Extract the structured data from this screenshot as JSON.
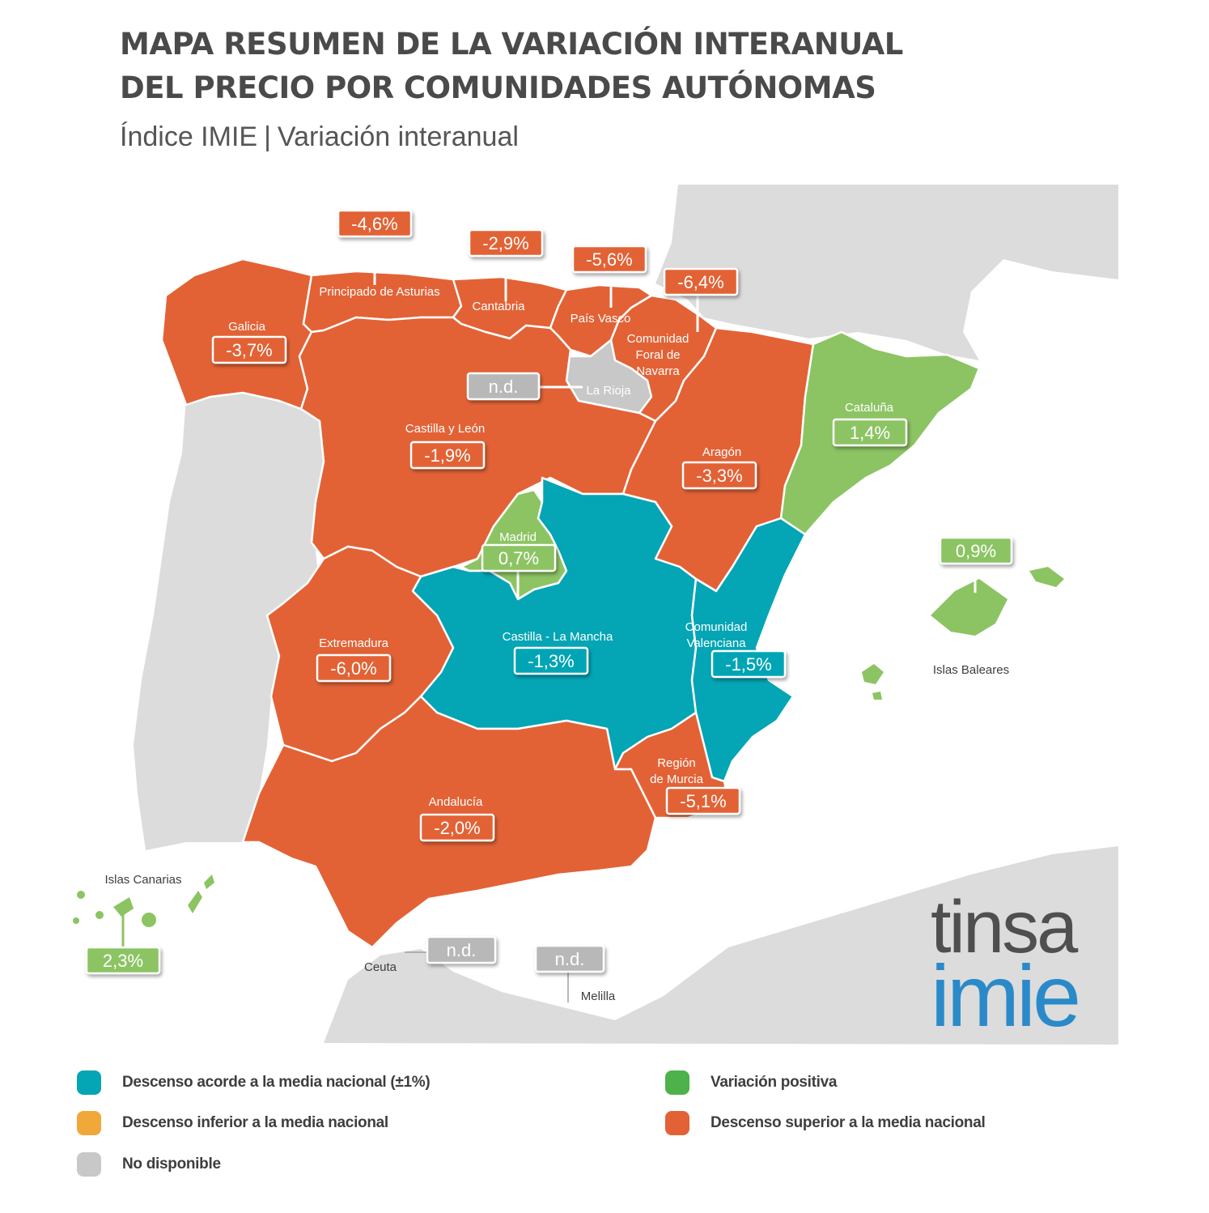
{
  "title_line1": "MAPA RESUMEN DE LA VARIACIÓN INTERANUAL",
  "title_line2": "DEL PRECIO POR COMUNIDADES AUTÓNOMAS",
  "subtitle_left": "Índice IMIE",
  "subtitle_sep": "|",
  "subtitle_right": "Variación interanual",
  "colors": {
    "orange": "#e26236",
    "teal": "#04a5b5",
    "green": "#8cc463",
    "grey": "#c8c8c8",
    "land_grey": "#dcdcdc",
    "legend_green": "#4db24b",
    "legend_yellow": "#f0a83a"
  },
  "regions": [
    {
      "id": "galicia",
      "name": "Galicia",
      "value": "-3,7%",
      "category": "descenso_superior"
    },
    {
      "id": "asturias",
      "name": "Principado de Asturias",
      "value": "-4,6%",
      "category": "descenso_superior"
    },
    {
      "id": "cantabria",
      "name": "Cantabria",
      "value": "-2,9%",
      "category": "descenso_superior"
    },
    {
      "id": "pais_vasco",
      "name": "País Vasco",
      "value": "-5,6%",
      "category": "descenso_superior"
    },
    {
      "id": "navarra",
      "name": "Comunidad Foral de Navarra",
      "value": "-6,4%",
      "category": "descenso_superior"
    },
    {
      "id": "la_rioja",
      "name": "La Rioja",
      "value": "n.d.",
      "category": "no_disponible"
    },
    {
      "id": "castilla_leon",
      "name": "Castilla y León",
      "value": "-1,9%",
      "category": "descenso_superior"
    },
    {
      "id": "aragon",
      "name": "Aragón",
      "value": "-3,3%",
      "category": "descenso_superior"
    },
    {
      "id": "cataluna",
      "name": "Cataluña",
      "value": "1,4%",
      "category": "variacion_positiva"
    },
    {
      "id": "madrid",
      "name": "Madrid",
      "value": "0,7%",
      "category": "variacion_positiva"
    },
    {
      "id": "baleares",
      "name": "Islas Baleares",
      "value": "0,9%",
      "category": "variacion_positiva"
    },
    {
      "id": "extremadura",
      "name": "Extremadura",
      "value": "-6,0%",
      "category": "descenso_superior"
    },
    {
      "id": "castilla_la_mancha",
      "name": "Castilla - La Mancha",
      "value": "-1,3%",
      "category": "descenso_acorde"
    },
    {
      "id": "valenciana",
      "name": "Comunidad Valenciana",
      "value": "-1,5%",
      "category": "descenso_acorde"
    },
    {
      "id": "murcia",
      "name": "Región de Murcia",
      "value": "-5,1%",
      "category": "descenso_superior"
    },
    {
      "id": "andalucia",
      "name": "Andalucía",
      "value": "-2,0%",
      "category": "descenso_superior"
    },
    {
      "id": "canarias",
      "name": "Islas Canarias",
      "value": "2,3%",
      "category": "variacion_positiva"
    },
    {
      "id": "ceuta",
      "name": "Ceuta",
      "value": "n.d.",
      "category": "no_disponible"
    },
    {
      "id": "melilla",
      "name": "Melilla",
      "value": "n.d.",
      "category": "no_disponible"
    }
  ],
  "labels": {
    "asturias_name": "Principado de Asturias",
    "navarra_line1": "Comunidad",
    "navarra_line2": "Foral de",
    "navarra_line3": "Navarra",
    "valenciana_line1": "Comunidad",
    "valenciana_line2": "Valenciana",
    "murcia_line1": "Región",
    "murcia_line2": "de Murcia"
  },
  "legend": [
    {
      "label": "Descenso acorde a la media nacional (±1%)",
      "color": "#04a5b5"
    },
    {
      "label": "Descenso inferior a la media nacional",
      "color": "#f0a83a"
    },
    {
      "label": "No disponible",
      "color": "#c8c8c8"
    },
    {
      "label": "Variación positiva",
      "color": "#4db24b"
    },
    {
      "label": "Descenso superior a la media nacional",
      "color": "#e26236"
    }
  ],
  "logo": {
    "top": "tinsa",
    "bottom": "imie"
  }
}
